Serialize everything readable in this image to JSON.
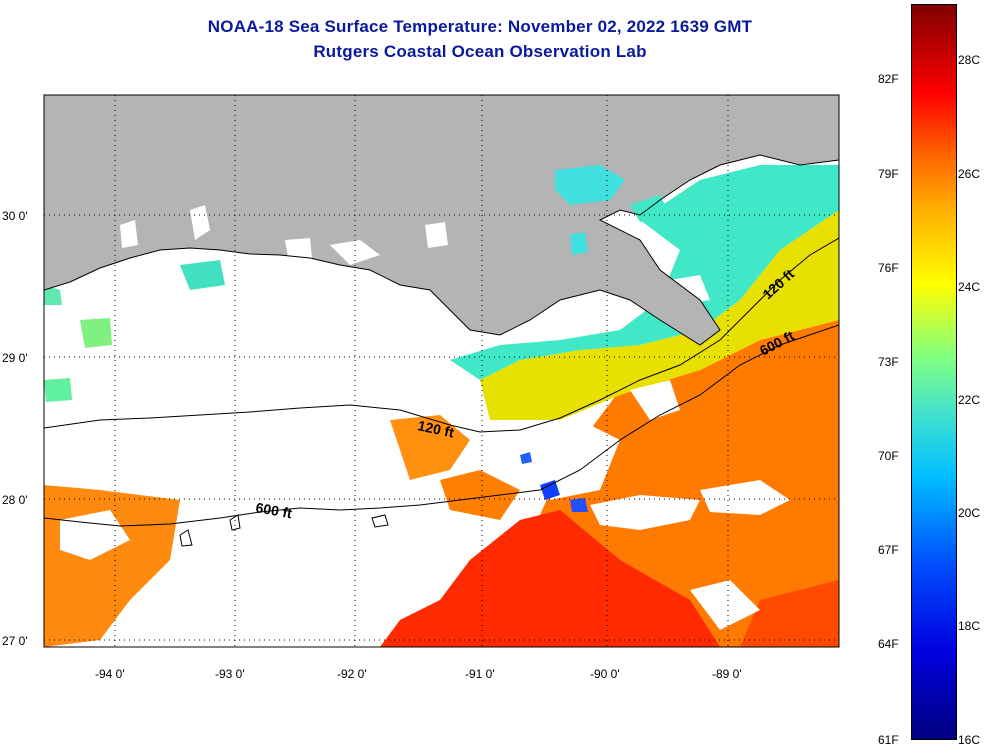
{
  "title": {
    "line1": "NOAA-18 Sea Surface Temperature:  November 02, 2022 1639 GMT",
    "line2": "Rutgers Coastal Ocean Observation Lab"
  },
  "map": {
    "lat_labels": [
      "30 0'",
      "29 0'",
      "28 0'",
      "27 0'"
    ],
    "lon_labels": [
      "-94 0'",
      "-93 0'",
      "-92 0'",
      "-91 0'",
      "-90 0'",
      "-89 0'"
    ],
    "contours": {
      "c120_left": "120 ft",
      "c600_left": "600 ft",
      "c120_right": "120 ft",
      "c600_right": "600 ft"
    },
    "colors": {
      "land": "#b4b4b4",
      "cloud": "#ffffff",
      "warm": "#ff3000",
      "orange": "#ff7a00",
      "yellow": "#d8f000",
      "cyan": "#30e0d0"
    }
  },
  "legend": {
    "fahrenheit": [
      "82F",
      "79F",
      "76F",
      "73F",
      "70F",
      "67F",
      "64F",
      "61F"
    ],
    "celsius": [
      "28C",
      "26C",
      "24C",
      "22C",
      "20C",
      "18C",
      "16C"
    ]
  }
}
